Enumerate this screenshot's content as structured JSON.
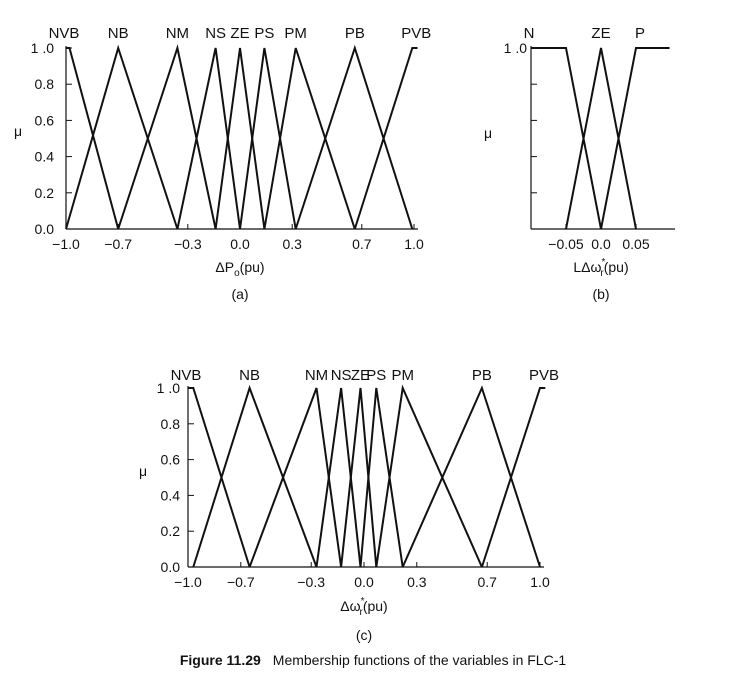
{
  "figure": {
    "number": "Figure 11.29",
    "caption": "Membership functions of the variables in FLC-1"
  },
  "chart_data": [
    {
      "type": "line",
      "panel_label": "(a)",
      "xlabel_base": "ΔP",
      "xlabel_sub": "o",
      "xlabel_tail": "(pu)",
      "ylabel": "μ",
      "xlim": [
        -1.0,
        1.0
      ],
      "ylim": [
        0.0,
        1.0
      ],
      "x_ticks": [
        -1.0,
        -0.7,
        -0.3,
        0.0,
        0.3,
        0.7,
        1.0
      ],
      "x_tick_labels": [
        "−1.0",
        "−0.7",
        "−0.3",
        "0.0",
        "0.3",
        "0.7",
        "1.0"
      ],
      "y_ticks": [
        0.0,
        0.2,
        0.4,
        0.6,
        0.8,
        1.0
      ],
      "y_tick_labels": [
        "0.0",
        "0.2",
        "0.4",
        "0.6",
        "0.8",
        "1 .0"
      ],
      "series": [
        {
          "name": "NVB",
          "x": [
            -1.0,
            -0.98,
            -0.7
          ],
          "y": [
            1,
            1,
            0
          ]
        },
        {
          "name": "NB",
          "x": [
            -1.0,
            -0.7,
            -0.36
          ],
          "y": [
            0,
            1,
            0
          ]
        },
        {
          "name": "NM",
          "x": [
            -0.7,
            -0.36,
            -0.14
          ],
          "y": [
            0,
            1,
            0
          ]
        },
        {
          "name": "NS",
          "x": [
            -0.36,
            -0.14,
            0.0
          ],
          "y": [
            0,
            1,
            0
          ]
        },
        {
          "name": "ZE",
          "x": [
            -0.14,
            0.0,
            0.14
          ],
          "y": [
            0,
            1,
            0
          ]
        },
        {
          "name": "PS",
          "x": [
            0.0,
            0.14,
            0.32
          ],
          "y": [
            0,
            1,
            0
          ]
        },
        {
          "name": "PM",
          "x": [
            0.14,
            0.32,
            0.66
          ],
          "y": [
            0,
            1,
            0
          ]
        },
        {
          "name": "PB",
          "x": [
            0.32,
            0.66,
            0.99
          ],
          "y": [
            0,
            1,
            0
          ]
        },
        {
          "name": "PVB",
          "x": [
            0.66,
            0.99,
            1.02
          ],
          "y": [
            0,
            1,
            1
          ]
        }
      ]
    },
    {
      "type": "line",
      "panel_label": "(b)",
      "xlabel_base": "LΔω",
      "xlabel_sub": "r",
      "xlabel_sup": "*",
      "xlabel_tail": "(pu)",
      "ylabel": "μ",
      "xlim": [
        -0.1,
        0.1
      ],
      "ylim": [
        0.0,
        1.0
      ],
      "x_ticks": [
        -0.05,
        0.0,
        0.05
      ],
      "x_tick_labels": [
        "−0.05",
        "0.0",
        "0.05"
      ],
      "y_ticks": [
        0.0,
        0.2,
        0.4,
        0.6,
        0.8,
        1.0
      ],
      "y_tick_labels": [
        "",
        "",
        "",
        "",
        "",
        "1 .0"
      ],
      "series": [
        {
          "name": "N",
          "x": [
            -0.1,
            -0.05,
            0.0
          ],
          "y": [
            1,
            1,
            0
          ]
        },
        {
          "name": "ZE",
          "x": [
            -0.05,
            0.0,
            0.05
          ],
          "y": [
            0,
            1,
            0
          ]
        },
        {
          "name": "P",
          "x": [
            0.0,
            0.05,
            0.098
          ],
          "y": [
            0,
            1,
            1
          ]
        }
      ]
    },
    {
      "type": "line",
      "panel_label": "(c)",
      "xlabel_base": "Δω",
      "xlabel_sub": "r",
      "xlabel_sup": "*",
      "xlabel_tail": "(pu)",
      "ylabel": "μ",
      "xlim": [
        -1.0,
        1.0
      ],
      "ylim": [
        0.0,
        1.0
      ],
      "x_ticks": [
        -1.0,
        -0.7,
        -0.3,
        0.0,
        0.3,
        0.7,
        1.0
      ],
      "x_tick_labels": [
        "−1.0",
        "−0.7",
        "−0.3",
        "0.0",
        "0.3",
        "0.7",
        "1.0"
      ],
      "y_ticks": [
        0.0,
        0.2,
        0.4,
        0.6,
        0.8,
        1.0
      ],
      "y_tick_labels": [
        "0.0",
        "0.2",
        "0.4",
        "0.6",
        "0.8",
        "1 .0"
      ],
      "series": [
        {
          "name": "NVB",
          "x": [
            -1.0,
            -0.97,
            -0.65
          ],
          "y": [
            1,
            1,
            0
          ]
        },
        {
          "name": "NB",
          "x": [
            -0.97,
            -0.65,
            -0.27
          ],
          "y": [
            0,
            1,
            0
          ]
        },
        {
          "name": "NM",
          "x": [
            -0.65,
            -0.27,
            -0.13
          ],
          "y": [
            0,
            1,
            0
          ]
        },
        {
          "name": "NS",
          "x": [
            -0.27,
            -0.13,
            -0.02
          ],
          "y": [
            0,
            1,
            0
          ]
        },
        {
          "name": "ZE",
          "x": [
            -0.13,
            -0.02,
            0.07
          ],
          "y": [
            0,
            1,
            0
          ]
        },
        {
          "name": "PS",
          "x": [
            -0.02,
            0.07,
            0.22
          ],
          "y": [
            0,
            1,
            0
          ]
        },
        {
          "name": "PM",
          "x": [
            0.07,
            0.22,
            0.67
          ],
          "y": [
            0,
            1,
            0
          ]
        },
        {
          "name": "PB",
          "x": [
            0.22,
            0.67,
            1.0
          ],
          "y": [
            0,
            1,
            0
          ]
        },
        {
          "name": "PVB",
          "x": [
            0.67,
            1.0,
            1.03
          ],
          "y": [
            0,
            1,
            1
          ]
        }
      ]
    }
  ]
}
